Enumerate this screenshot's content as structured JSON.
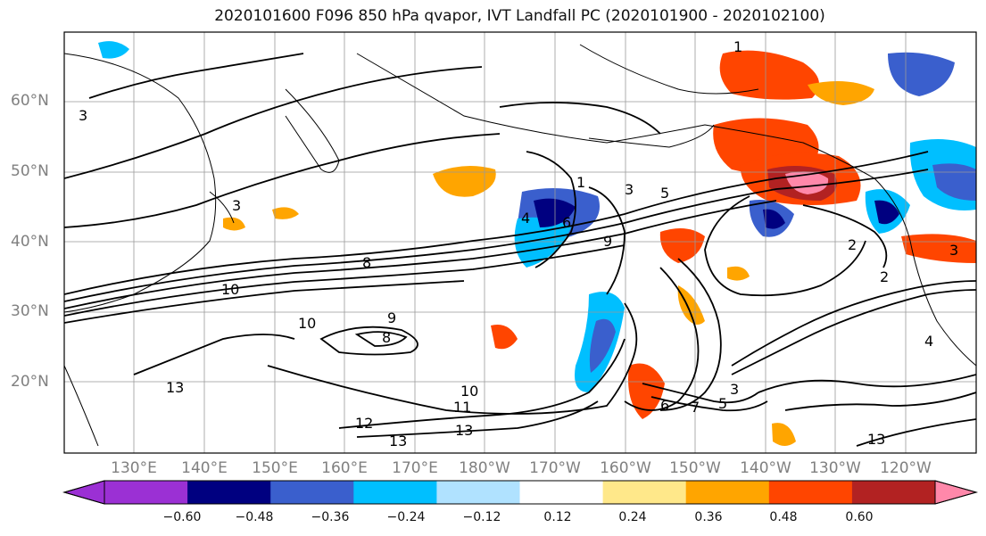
{
  "title": "2020101600 F096 850 hPa qvapor, IVT Landfall PC (2020101900 - 2020102100)",
  "lat_labels": [
    "60°N",
    "50°N",
    "40°N",
    "30°N",
    "20°N"
  ],
  "lon_labels": [
    "130°E",
    "140°E",
    "150°E",
    "160°E",
    "170°E",
    "180°W",
    "170°W",
    "160°W",
    "150°W",
    "140°W",
    "130°W",
    "120°W"
  ],
  "colorbar": {
    "ticks": [
      "−0.60",
      "−0.48",
      "−0.36",
      "−0.24",
      "−0.12",
      "0.12",
      "0.24",
      "0.36",
      "0.48",
      "0.60"
    ],
    "colors": [
      "#9b30d4",
      "#000080",
      "#3a5fcd",
      "#00bfff",
      "#b0e2ff",
      "#ffffff",
      "#ffe88a",
      "#ffa500",
      "#ff4500",
      "#b22222",
      "#ff88aa"
    ]
  },
  "contour_labels": [
    "1",
    "1",
    "3",
    "3",
    "3",
    "4",
    "5",
    "6",
    "9",
    "10",
    "10",
    "8",
    "9",
    "8",
    "13",
    "10",
    "11",
    "12",
    "13",
    "13",
    "6",
    "7",
    "5",
    "3",
    "2",
    "2",
    "3",
    "4",
    "13"
  ]
}
